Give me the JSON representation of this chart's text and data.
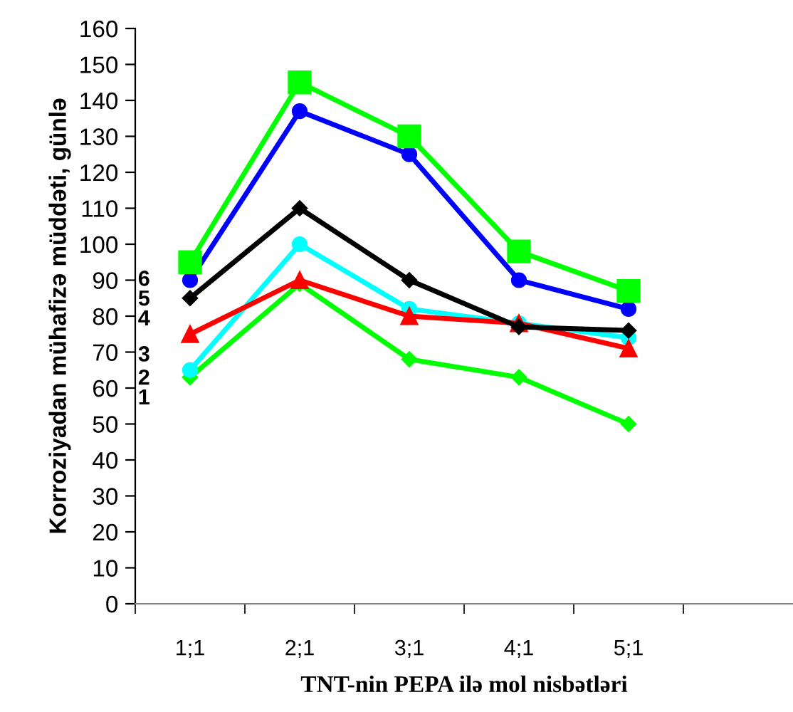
{
  "chart_data": {
    "type": "line",
    "xlabel": "TNT-nin PEPA ilə mol nisbətləri",
    "ylabel": "Korroziyadan mühafizə müddəti, günlə",
    "categories": [
      "1;1",
      "2;1",
      "3;1",
      "4;1",
      "5;1",
      null
    ],
    "ylim": [
      0,
      160
    ],
    "yticks": [
      0,
      10,
      20,
      30,
      40,
      50,
      60,
      70,
      80,
      90,
      100,
      110,
      120,
      130,
      140,
      150,
      160
    ],
    "grid": false,
    "legend": false,
    "line_style": "solid",
    "series": [
      {
        "name": "1",
        "color": "#00ff00",
        "marker": "diamond",
        "values": [
          63,
          89,
          68,
          63,
          50,
          null
        ]
      },
      {
        "name": "2",
        "color": "#00ffff",
        "marker": "circle",
        "values": [
          65,
          100,
          82,
          78,
          74,
          null
        ]
      },
      {
        "name": "3",
        "color": "#ff0000",
        "marker": "triangle",
        "values": [
          75,
          90,
          80,
          78,
          71,
          null
        ]
      },
      {
        "name": "4",
        "color": "#000000",
        "marker": "diamond",
        "values": [
          85,
          110,
          90,
          77,
          76,
          null
        ]
      },
      {
        "name": "5",
        "color": "#0000ff",
        "marker": "circle",
        "values": [
          90,
          137,
          125,
          90,
          82,
          null
        ]
      },
      {
        "name": "6",
        "color": "#00ff00",
        "marker": "square",
        "values": [
          95,
          145,
          130,
          98,
          87,
          null
        ]
      }
    ]
  }
}
